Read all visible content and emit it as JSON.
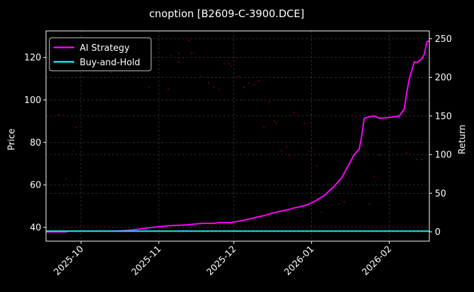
{
  "chart_data": {
    "type": "line",
    "title": "cnoption [B2609-C-3900.DCE]",
    "xlabel": "",
    "ylabel_left": "Price",
    "ylabel_right": "Return",
    "x_ticks": [
      "2025-10",
      "2025-11",
      "2025-12",
      "2026-01",
      "2026-02"
    ],
    "xlim": [
      "2025-09-17",
      "2026-02-17"
    ],
    "left_axis": {
      "ylim": [
        33.5,
        132.5
      ],
      "ticks": [
        40,
        60,
        80,
        100,
        120
      ]
    },
    "right_axis": {
      "ylim": [
        -12,
        260
      ],
      "ticks": [
        0,
        50,
        100,
        150,
        200,
        250
      ]
    },
    "grid": true,
    "legend_position": "top-left",
    "series": [
      {
        "name": "AI Strategy",
        "axis": "right",
        "color": "#ff00ff",
        "points": [
          [
            "2025-09-17",
            0
          ],
          [
            "2025-09-25",
            0
          ],
          [
            "2025-09-26",
            1
          ],
          [
            "2025-10-15",
            1
          ],
          [
            "2025-10-20",
            2
          ],
          [
            "2025-10-25",
            4
          ],
          [
            "2025-10-30",
            6
          ],
          [
            "2025-11-05",
            8
          ],
          [
            "2025-11-12",
            9
          ],
          [
            "2025-11-18",
            11
          ],
          [
            "2025-11-23",
            11
          ],
          [
            "2025-11-25",
            12
          ],
          [
            "2025-11-30",
            12
          ],
          [
            "2025-12-03",
            14
          ],
          [
            "2025-12-05",
            15
          ],
          [
            "2025-12-10",
            19
          ],
          [
            "2025-12-13",
            21
          ],
          [
            "2025-12-16",
            24
          ],
          [
            "2025-12-20",
            27
          ],
          [
            "2025-12-23",
            29
          ],
          [
            "2025-12-25",
            31
          ],
          [
            "2025-12-28",
            33
          ],
          [
            "2025-12-31",
            36
          ],
          [
            "2026-01-03",
            41
          ],
          [
            "2026-01-06",
            47
          ],
          [
            "2026-01-10",
            59
          ],
          [
            "2026-01-13",
            70
          ],
          [
            "2026-01-16",
            88
          ],
          [
            "2026-01-18",
            100
          ],
          [
            "2026-01-20",
            107
          ],
          [
            "2026-01-21",
            124
          ],
          [
            "2026-01-22",
            147
          ],
          [
            "2026-01-24",
            149
          ],
          [
            "2026-01-26",
            150
          ],
          [
            "2026-01-28",
            147
          ],
          [
            "2026-02-01",
            148
          ],
          [
            "2026-02-03",
            149
          ],
          [
            "2026-02-05",
            150
          ],
          [
            "2026-02-07",
            159
          ],
          [
            "2026-02-08",
            181
          ],
          [
            "2026-02-09",
            198
          ],
          [
            "2026-02-11",
            220
          ],
          [
            "2026-02-12",
            219
          ],
          [
            "2026-02-14",
            224
          ],
          [
            "2026-02-15",
            230
          ],
          [
            "2026-02-16",
            246
          ],
          [
            "2026-02-17",
            247
          ]
        ]
      },
      {
        "name": "Buy-and-Hold",
        "axis": "right",
        "color": "#22e4f0",
        "points": [
          [
            "2025-09-17",
            1
          ],
          [
            "2025-10-15",
            1
          ],
          [
            "2025-11-15",
            1
          ],
          [
            "2025-12-15",
            1
          ],
          [
            "2026-01-15",
            1
          ],
          [
            "2026-02-17",
            1
          ]
        ]
      }
    ],
    "price_points": [
      [
        "2025-09-22",
        93
      ],
      [
        "2025-09-25",
        63
      ],
      [
        "2025-09-28",
        76
      ],
      [
        "2025-09-29",
        87
      ],
      [
        "2025-10-13",
        113
      ],
      [
        "2025-10-14",
        114
      ],
      [
        "2025-10-28",
        106
      ],
      [
        "2025-11-05",
        105
      ],
      [
        "2025-11-06",
        121
      ],
      [
        "2025-11-09",
        122
      ],
      [
        "2025-11-09",
        118
      ],
      [
        "2025-11-13",
        128
      ],
      [
        "2025-11-14",
        122
      ],
      [
        "2025-11-15",
        122
      ],
      [
        "2025-11-18",
        111
      ],
      [
        "2025-11-21",
        108
      ],
      [
        "2025-11-23",
        106
      ],
      [
        "2025-11-25",
        105
      ],
      [
        "2025-11-27",
        117
      ],
      [
        "2025-11-29",
        117
      ],
      [
        "2025-11-30",
        116
      ],
      [
        "2025-12-03",
        111
      ],
      [
        "2025-12-05",
        106
      ],
      [
        "2025-12-07",
        108
      ],
      [
        "2025-12-09",
        107
      ],
      [
        "2025-12-11",
        109
      ],
      [
        "2025-12-13",
        87
      ],
      [
        "2025-12-15",
        99
      ],
      [
        "2025-12-17",
        90
      ],
      [
        "2025-12-18",
        89
      ],
      [
        "2025-12-20",
        76
      ],
      [
        "2025-12-22",
        78
      ],
      [
        "2025-12-23",
        74
      ],
      [
        "2025-12-25",
        94
      ],
      [
        "2025-12-29",
        89
      ],
      [
        "2025-12-31",
        76
      ],
      [
        "2026-01-01",
        77
      ],
      [
        "2026-01-03",
        69
      ],
      [
        "2026-01-05",
        47
      ],
      [
        "2026-01-12",
        51
      ],
      [
        "2026-01-14",
        52
      ],
      [
        "2026-01-24",
        51
      ],
      [
        "2026-01-26",
        64
      ],
      [
        "2026-01-28",
        74
      ],
      [
        "2026-02-08",
        75
      ],
      [
        "2026-02-12",
        72
      ],
      [
        "2026-02-14",
        72
      ]
    ],
    "price_points_color": "#8b0000"
  },
  "colors": {
    "background": "#000000",
    "grid": "#3a3a3a",
    "axis": "#ffffff",
    "legend_border": "#cccccc"
  }
}
